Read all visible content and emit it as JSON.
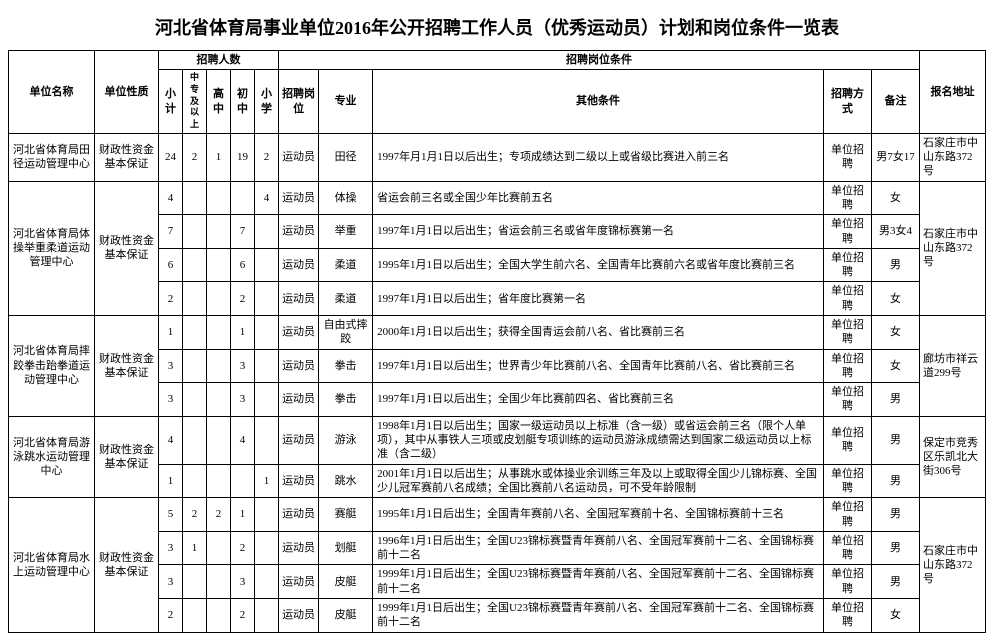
{
  "title": "河北省体育局事业单位2016年公开招聘工作人员（优秀运动员）计划和岗位条件一览表",
  "headers": {
    "unit": "单位名称",
    "nature": "单位性质",
    "count_group": "招聘人数",
    "counts": {
      "xj": "小计",
      "zz": "中专及以上",
      "gz": "高中",
      "cz": "初中",
      "xx": "小学"
    },
    "cond_group": "招聘岗位条件",
    "post": "招聘岗位",
    "major": "专业",
    "other": "其他条件",
    "method": "招聘方式",
    "remark": "备注",
    "addr": "报名地址"
  },
  "rows": [
    {
      "unit": "河北省体育局田径运动管理中心",
      "nature": "财政性资金基本保证",
      "xj": "24",
      "zz": "2",
      "gz": "1",
      "cz": "19",
      "xx": "2",
      "post": "运动员",
      "major": "田径",
      "other": "1997年月1月1日以后出生；专项成绩达到二级以上或省级比赛进入前三名",
      "method": "单位招聘",
      "remark": "男7女17",
      "addr": "石家庄市中山东路372号",
      "unitspan": 1,
      "naturespan": 1,
      "addrspan": 1
    },
    {
      "unit": "河北省体育局体操举重柔道运动管理中心",
      "nature": "财政性资金基本保证",
      "xj": "4",
      "zz": "",
      "gz": "",
      "cz": "",
      "xx": "4",
      "post": "运动员",
      "major": "体操",
      "other": "省运会前三名或全国少年比赛前五名",
      "method": "单位招聘",
      "remark": "女",
      "addr": "石家庄市中山东路372号",
      "unitspan": 4,
      "naturespan": 4,
      "addrspan": 4
    },
    {
      "xj": "7",
      "zz": "",
      "gz": "",
      "cz": "7",
      "xx": "",
      "post": "运动员",
      "major": "举重",
      "other": "1997年1月1日以后出生；省运会前三名或省年度锦标赛第一名",
      "method": "单位招聘",
      "remark": "男3女4"
    },
    {
      "xj": "6",
      "zz": "",
      "gz": "",
      "cz": "6",
      "xx": "",
      "post": "运动员",
      "major": "柔道",
      "other": "1995年1月1日以后出生；全国大学生前六名、全国青年比赛前六名或省年度比赛前三名",
      "method": "单位招聘",
      "remark": "男"
    },
    {
      "xj": "2",
      "zz": "",
      "gz": "",
      "cz": "2",
      "xx": "",
      "post": "运动员",
      "major": "柔道",
      "other": "1997年1月1日以后出生；省年度比赛第一名",
      "method": "单位招聘",
      "remark": "女"
    },
    {
      "unit": "河北省体育局摔跤拳击跆拳道运动管理中心",
      "nature": "财政性资金基本保证",
      "xj": "1",
      "zz": "",
      "gz": "",
      "cz": "1",
      "xx": "",
      "post": "运动员",
      "major": "自由式摔跤",
      "other": "2000年1月1日以后出生；获得全国青运会前八名、省比赛前三名",
      "method": "单位招聘",
      "remark": "女",
      "addr": "廊坊市祥云道299号",
      "unitspan": 3,
      "naturespan": 3,
      "addrspan": 3
    },
    {
      "xj": "3",
      "zz": "",
      "gz": "",
      "cz": "3",
      "xx": "",
      "post": "运动员",
      "major": "拳击",
      "other": "1997年1月1日以后出生；世界青少年比赛前八名、全国青年比赛前八名、省比赛前三名",
      "method": "单位招聘",
      "remark": "女"
    },
    {
      "xj": "3",
      "zz": "",
      "gz": "",
      "cz": "3",
      "xx": "",
      "post": "运动员",
      "major": "拳击",
      "other": "1997年1月1日以后出生；全国少年比赛前四名、省比赛前三名",
      "method": "单位招聘",
      "remark": "男"
    },
    {
      "unit": "河北省体育局游泳跳水运动管理中心",
      "nature": "财政性资金基本保证",
      "xj": "4",
      "zz": "",
      "gz": "",
      "cz": "4",
      "xx": "",
      "post": "运动员",
      "major": "游泳",
      "other": "1998年1月1日以后出生；国家一级运动员以上标准（含一级）或省运会前三名（限个人单项），其中从事铁人三项或皮划艇专项训练的运动员游泳成绩需达到国家二级运动员以上标准（含二级）",
      "method": "单位招聘",
      "remark": "男",
      "addr": "保定市竞秀区乐凯北大街306号",
      "unitspan": 2,
      "naturespan": 2,
      "addrspan": 2
    },
    {
      "xj": "1",
      "zz": "",
      "gz": "",
      "cz": "",
      "xx": "1",
      "post": "运动员",
      "major": "跳水",
      "other": "2001年1月1日以后出生；从事跳水或体操业余训练三年及以上或取得全国少儿锦标赛、全国少儿冠军赛前八名成绩；全国比赛前八名运动员，可不受年龄限制",
      "method": "单位招聘",
      "remark": "男"
    },
    {
      "unit": "河北省体育局水上运动管理中心",
      "nature": "财政性资金基本保证",
      "xj": "5",
      "zz": "2",
      "gz": "2",
      "cz": "1",
      "xx": "",
      "post": "运动员",
      "major": "赛艇",
      "other": "1995年1月1日后出生；全国青年赛前八名、全国冠军赛前十名、全国锦标赛前十三名",
      "method": "单位招聘",
      "remark": "男",
      "addr": "石家庄市中山东路372号",
      "unitspan": 4,
      "naturespan": 4,
      "addrspan": 4
    },
    {
      "xj": "3",
      "zz": "1",
      "gz": "",
      "cz": "2",
      "xx": "",
      "post": "运动员",
      "major": "划艇",
      "other": "1996年1月1日后出生；全国U23锦标赛暨青年赛前八名、全国冠军赛前十二名、全国锦标赛前十二名",
      "method": "单位招聘",
      "remark": "男"
    },
    {
      "xj": "3",
      "zz": "",
      "gz": "",
      "cz": "3",
      "xx": "",
      "post": "运动员",
      "major": "皮艇",
      "other": "1999年1月1日后出生；全国U23锦标赛暨青年赛前八名、全国冠军赛前十二名、全国锦标赛前十二名",
      "method": "单位招聘",
      "remark": "男"
    },
    {
      "xj": "2",
      "zz": "",
      "gz": "",
      "cz": "2",
      "xx": "",
      "post": "运动员",
      "major": "皮艇",
      "other": "1999年1月1日后出生；全国U23锦标赛暨青年赛前八名、全国冠军赛前十二名、全国锦标赛前十二名",
      "method": "单位招聘",
      "remark": "女"
    }
  ]
}
